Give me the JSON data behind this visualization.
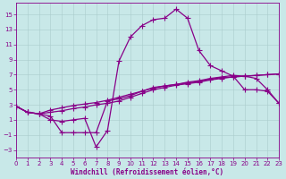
{
  "xlabel": "Windchill (Refroidissement éolien,°C)",
  "bg_color": "#c8e8e8",
  "grid_color": "#aacccc",
  "line_color": "#880088",
  "xlim": [
    0,
    23
  ],
  "ylim": [
    -4,
    16.5
  ],
  "xticks": [
    0,
    1,
    2,
    3,
    4,
    5,
    6,
    7,
    8,
    9,
    10,
    11,
    12,
    13,
    14,
    15,
    16,
    17,
    18,
    19,
    20,
    21,
    22,
    23
  ],
  "yticks": [
    -3,
    -1,
    1,
    3,
    5,
    7,
    9,
    11,
    13,
    15
  ],
  "curve1_x": [
    0,
    1,
    2,
    3,
    4,
    5,
    6,
    7,
    8,
    9,
    10,
    11,
    12,
    13,
    14,
    15,
    16,
    17,
    18,
    19,
    20,
    21,
    22,
    23
  ],
  "curve1_y": [
    2.8,
    2.0,
    1.8,
    1.0,
    0.8,
    1.0,
    1.2,
    -2.6,
    -0.4,
    8.8,
    12.0,
    13.5,
    14.3,
    14.5,
    15.7,
    14.5,
    10.2,
    8.2,
    7.5,
    6.8,
    5.0,
    5.0,
    4.8,
    3.2
  ],
  "curve2_x": [
    0,
    1,
    2,
    3,
    4,
    5,
    6,
    7,
    8,
    9,
    10,
    11,
    12,
    13,
    14,
    15,
    16,
    17,
    18,
    19,
    20,
    21,
    22,
    23
  ],
  "curve2_y": [
    2.8,
    2.0,
    1.8,
    1.5,
    -0.7,
    -0.7,
    -0.7,
    -0.7,
    3.5,
    3.8,
    4.2,
    4.8,
    5.3,
    5.5,
    5.7,
    6.0,
    6.2,
    6.5,
    6.7,
    6.9,
    6.8,
    6.5,
    5.0,
    3.2
  ],
  "curve3_x": [
    0,
    1,
    2,
    3,
    4,
    5,
    6,
    7,
    8,
    9,
    10,
    11,
    12,
    13,
    14,
    15,
    16,
    17,
    18,
    19,
    20,
    21,
    22,
    23
  ],
  "curve3_y": [
    2.8,
    2.0,
    1.8,
    2.0,
    2.2,
    2.5,
    2.7,
    3.0,
    3.2,
    3.5,
    4.0,
    4.5,
    5.0,
    5.3,
    5.6,
    5.8,
    6.0,
    6.3,
    6.5,
    6.7,
    6.8,
    6.9,
    7.0,
    7.1
  ],
  "curve4_x": [
    0,
    1,
    2,
    3,
    4,
    5,
    6,
    7,
    8,
    9,
    10,
    11,
    12,
    13,
    14,
    15,
    16,
    17,
    18,
    19,
    20,
    21,
    22,
    23
  ],
  "curve4_y": [
    2.8,
    2.0,
    1.8,
    2.3,
    2.6,
    2.9,
    3.1,
    3.3,
    3.6,
    4.0,
    4.4,
    4.8,
    5.2,
    5.5,
    5.7,
    5.9,
    6.1,
    6.4,
    6.6,
    6.7,
    6.8,
    6.9,
    7.0,
    7.1
  ],
  "tick_fontsize": 5,
  "xlabel_fontsize": 5.5,
  "marker": "+",
  "markersize": 4,
  "linewidth": 0.9
}
